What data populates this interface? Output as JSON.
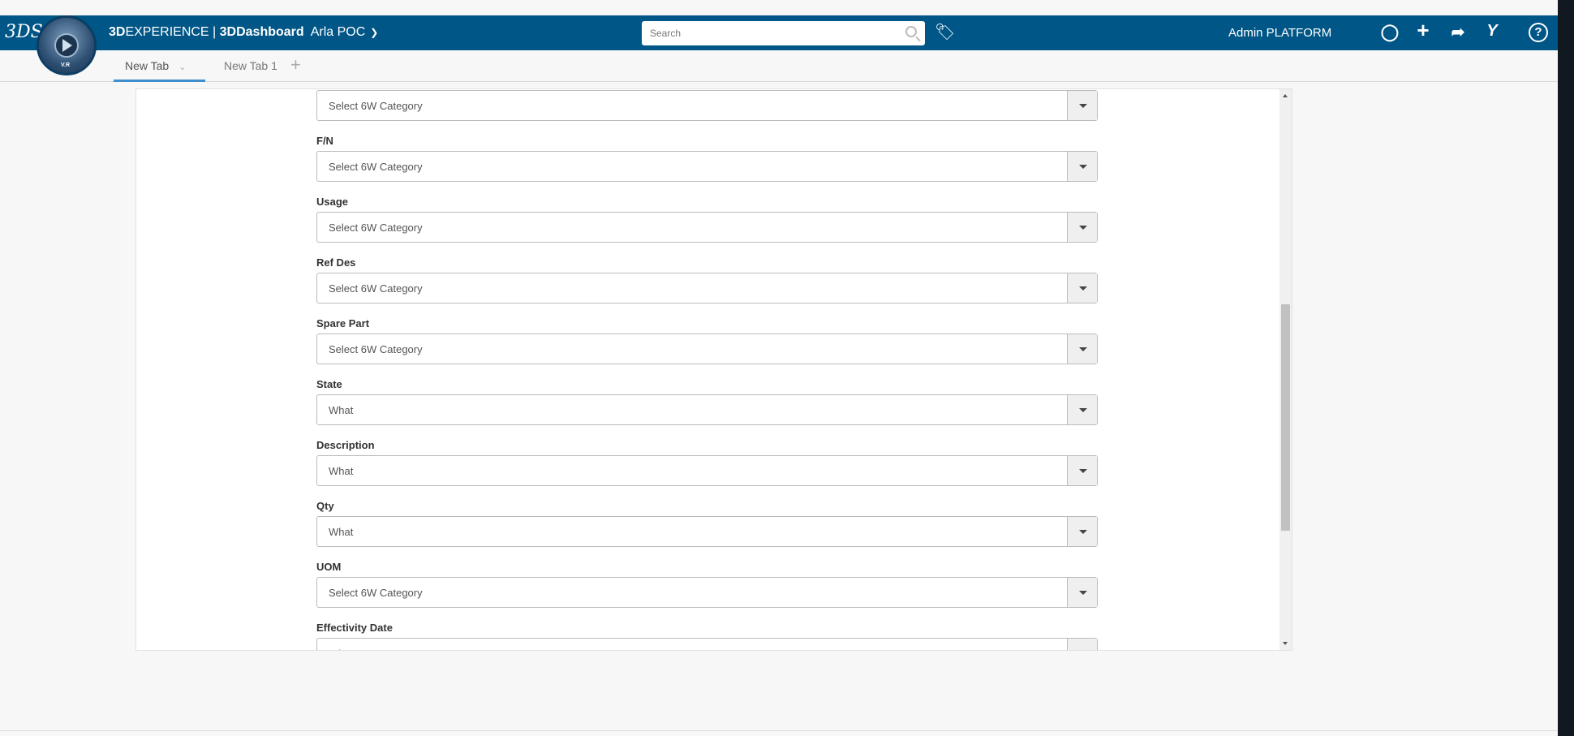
{
  "header": {
    "brand_bold": "3D",
    "brand_rest": "EXPERIENCE | ",
    "app": "3DDashboard",
    "dashboard": "Arla POC",
    "compass_version": "V.R",
    "search_placeholder": "Search",
    "user": "Admin PLATFORM",
    "icons": [
      "notifications-icon",
      "add-icon",
      "share-icon",
      "community-icon",
      "help-icon"
    ],
    "color": "#005686"
  },
  "tabs": [
    {
      "label": "New Tab",
      "active": true
    },
    {
      "label": "New Tab 1",
      "active": false
    }
  ],
  "form": {
    "fields": [
      {
        "label": "",
        "value": "Select 6W Category"
      },
      {
        "label": "F/N",
        "value": "Select 6W Category"
      },
      {
        "label": "Usage",
        "value": "Select 6W Category"
      },
      {
        "label": "Ref Des",
        "value": "Select 6W Category"
      },
      {
        "label": "Spare Part",
        "value": "Select 6W Category"
      },
      {
        "label": "State",
        "value": "What"
      },
      {
        "label": "Description",
        "value": "What"
      },
      {
        "label": "Qty",
        "value": "What"
      },
      {
        "label": "UOM",
        "value": "Select 6W Category"
      },
      {
        "label": "Effectivity Date",
        "value": "What"
      }
    ],
    "scroll_position_percent": 50
  }
}
